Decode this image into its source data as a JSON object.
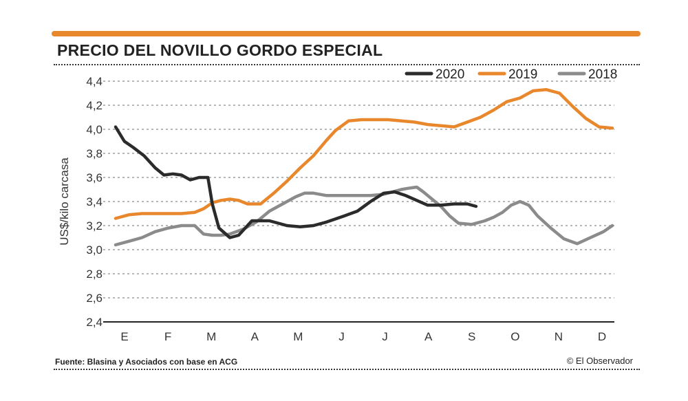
{
  "header": {
    "title": "PRECIO DEL NOVILLO GORDO ESPECIAL",
    "accent_color": "#e8872b"
  },
  "footer": {
    "source": "Fuente: Blasina y Asociados con base en ACG",
    "credit": "© El Observador"
  },
  "chart_data": {
    "type": "line",
    "title": "PRECIO DEL NOVILLO GORDO ESPECIAL",
    "xlabel": "",
    "ylabel": "US$/kilo carcasa",
    "ylim": [
      2.4,
      4.4
    ],
    "xlim": [
      0,
      11.3
    ],
    "yticks": [
      2.4,
      2.6,
      2.8,
      3.0,
      3.2,
      3.4,
      3.6,
      3.8,
      4.0,
      4.2,
      4.4
    ],
    "ytick_labels": [
      "2,4",
      "2,6",
      "2,8",
      "3,0",
      "3,2",
      "3,4",
      "3,6",
      "3,8",
      "4,0",
      "4,2",
      "4,4"
    ],
    "categories": [
      "E",
      "F",
      "M",
      "A",
      "M",
      "J",
      "J",
      "A",
      "S",
      "O",
      "N",
      "D"
    ],
    "grid": true,
    "legend": "top-right",
    "series": [
      {
        "name": "2020",
        "color": "#2b2b2b",
        "x": [
          0,
          0.2,
          0.4,
          0.65,
          0.9,
          1.1,
          1.3,
          1.5,
          1.7,
          1.9,
          2.1,
          2.2,
          2.35,
          2.6,
          2.8,
          3.1,
          3.5,
          3.9,
          4.2,
          4.5,
          4.8,
          5.2,
          5.5,
          5.8,
          6.1,
          6.35,
          6.6,
          6.85,
          7.1,
          7.4,
          7.7,
          8.0,
          8.2
        ],
        "y": [
          4.02,
          3.9,
          3.85,
          3.78,
          3.68,
          3.62,
          3.63,
          3.62,
          3.58,
          3.6,
          3.6,
          3.38,
          3.18,
          3.1,
          3.12,
          3.24,
          3.24,
          3.2,
          3.19,
          3.2,
          3.23,
          3.28,
          3.32,
          3.4,
          3.47,
          3.48,
          3.45,
          3.41,
          3.37,
          3.37,
          3.38,
          3.38,
          3.36
        ]
      },
      {
        "name": "2019",
        "color": "#e8872b",
        "x": [
          0,
          0.3,
          0.6,
          0.9,
          1.2,
          1.5,
          1.8,
          2.0,
          2.2,
          2.4,
          2.6,
          2.8,
          3.0,
          3.3,
          3.6,
          3.9,
          4.2,
          4.5,
          4.8,
          5.0,
          5.3,
          5.6,
          5.9,
          6.2,
          6.5,
          6.8,
          7.1,
          7.4,
          7.7,
          8.0,
          8.3,
          8.6,
          8.9,
          9.2,
          9.5,
          9.8,
          10.1,
          10.4,
          10.7,
          11.0,
          11.3
        ],
        "y": [
          3.26,
          3.29,
          3.3,
          3.3,
          3.3,
          3.3,
          3.31,
          3.34,
          3.39,
          3.41,
          3.42,
          3.41,
          3.38,
          3.38,
          3.47,
          3.57,
          3.68,
          3.78,
          3.91,
          3.99,
          4.07,
          4.08,
          4.08,
          4.08,
          4.07,
          4.06,
          4.04,
          4.03,
          4.02,
          4.06,
          4.1,
          4.16,
          4.23,
          4.26,
          4.32,
          4.33,
          4.3,
          4.19,
          4.09,
          4.02,
          4.01
        ]
      },
      {
        "name": "2018",
        "color": "#8c8b8b",
        "x": [
          0,
          0.3,
          0.6,
          0.9,
          1.2,
          1.5,
          1.8,
          2.0,
          2.2,
          2.4,
          2.6,
          2.9,
          3.2,
          3.5,
          3.8,
          4.1,
          4.3,
          4.5,
          4.8,
          5.1,
          5.4,
          5.8,
          6.1,
          6.3,
          6.5,
          6.65,
          6.85,
          7.0,
          7.2,
          7.4,
          7.6,
          7.8,
          8.1,
          8.4,
          8.6,
          8.8,
          9.0,
          9.2,
          9.4,
          9.6,
          9.9,
          10.2,
          10.5,
          10.8,
          11.1,
          11.3
        ],
        "y": [
          3.04,
          3.07,
          3.1,
          3.15,
          3.18,
          3.2,
          3.2,
          3.13,
          3.12,
          3.12,
          3.13,
          3.17,
          3.23,
          3.32,
          3.38,
          3.44,
          3.47,
          3.47,
          3.45,
          3.45,
          3.45,
          3.45,
          3.46,
          3.48,
          3.5,
          3.51,
          3.52,
          3.48,
          3.42,
          3.36,
          3.28,
          3.22,
          3.21,
          3.24,
          3.27,
          3.31,
          3.37,
          3.4,
          3.37,
          3.28,
          3.18,
          3.09,
          3.05,
          3.1,
          3.15,
          3.2
        ]
      }
    ]
  }
}
